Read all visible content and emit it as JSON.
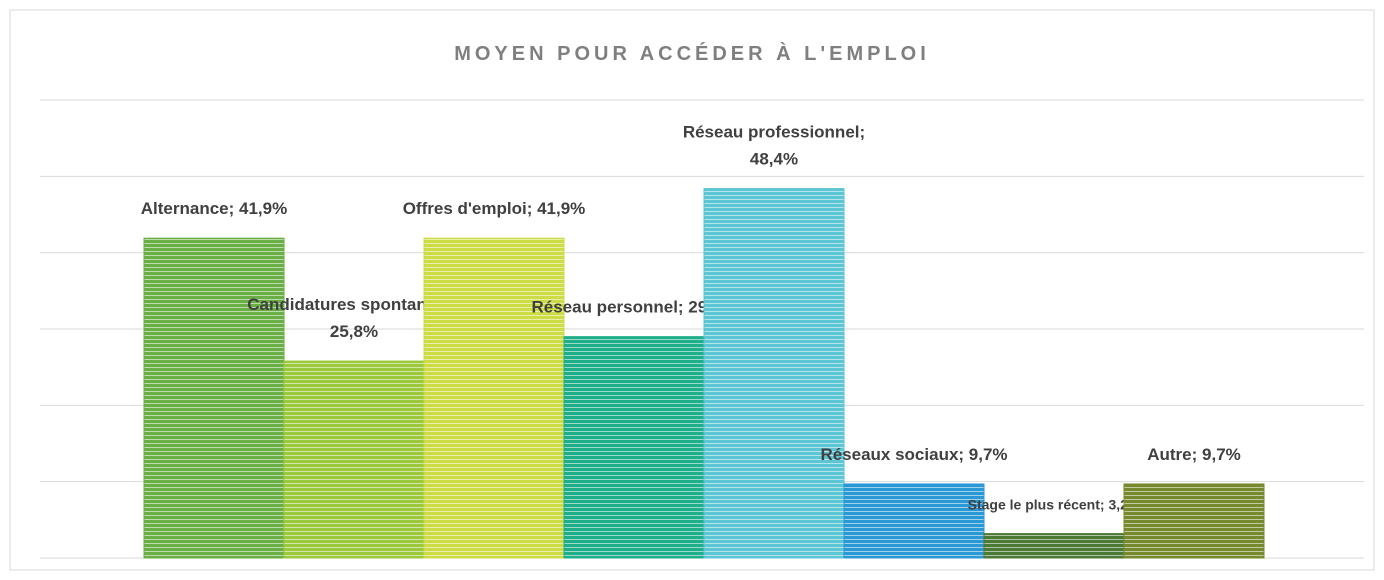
{
  "chart_data": {
    "type": "bar",
    "title": "MOYEN POUR ACCÉDER À L'EMPLOI",
    "values": [
      41.9,
      25.8,
      41.9,
      29.0,
      48.4,
      9.7,
      3.2,
      9.7
    ],
    "value_labels": [
      "Alternance; 41,9%",
      "Candidatures spontanées; 25,8%",
      "Offres d'emploi; 41,9%",
      "Réseau personnel; 29,0%",
      "Réseau professionnel; 48,4%",
      "Réseaux sociaux; 9,7%",
      "Stage le plus récent; 3,2%",
      "Autre; 9,7%"
    ],
    "colors": [
      "#6aaf45",
      "#9cc83c",
      "#cddc45",
      "#1fae8a",
      "#5cc6d4",
      "#2b98d6",
      "#4c7a36",
      "#77892d"
    ],
    "ylim": [
      0,
      60
    ],
    "yticks": [
      0,
      10,
      20,
      30,
      40,
      50,
      60
    ],
    "grid": true
  }
}
